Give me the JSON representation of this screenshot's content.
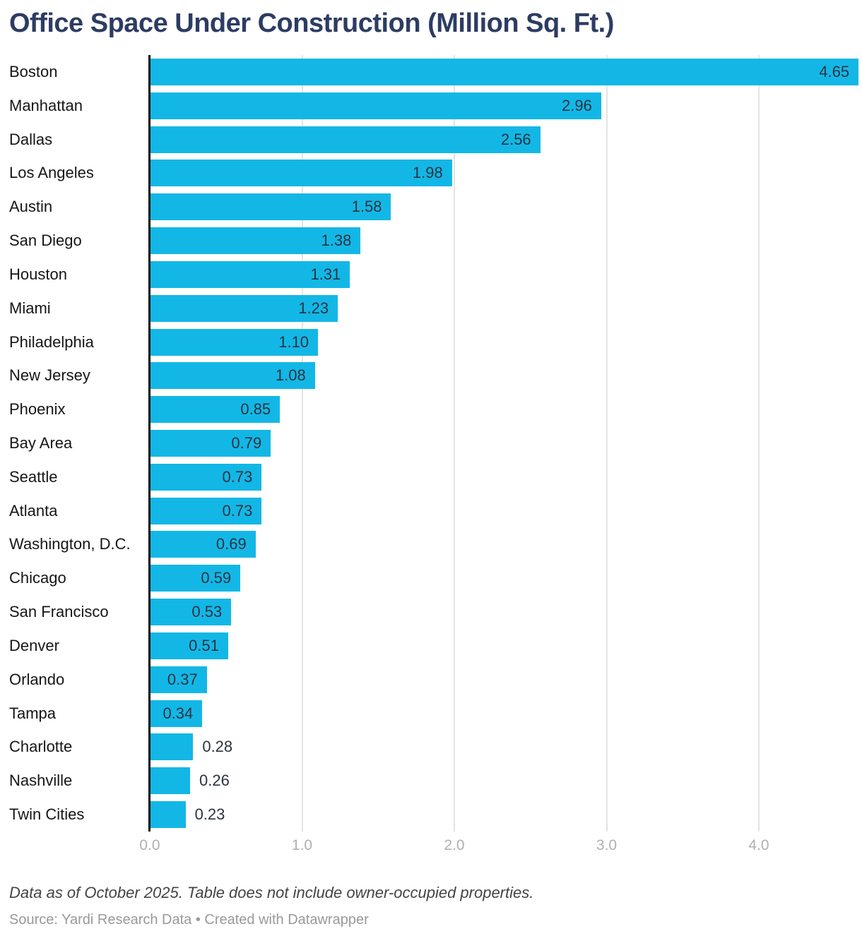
{
  "title": "Office Space Under Construction (Million Sq. Ft.)",
  "chart_data": {
    "type": "bar",
    "orientation": "horizontal",
    "title": "Office Space Under Construction (Million Sq. Ft.)",
    "categories": [
      "Boston",
      "Manhattan",
      "Dallas",
      "Los Angeles",
      "Austin",
      "San Diego",
      "Houston",
      "Miami",
      "Philadelphia",
      "New Jersey",
      "Phoenix",
      "Bay Area",
      "Seattle",
      "Atlanta",
      "Washington, D.C.",
      "Chicago",
      "San Francisco",
      "Denver",
      "Orlando",
      "Tampa",
      "Charlotte",
      "Nashville",
      "Twin Cities"
    ],
    "values": [
      4.65,
      2.96,
      2.56,
      1.98,
      1.58,
      1.38,
      1.31,
      1.23,
      1.1,
      1.08,
      0.85,
      0.79,
      0.73,
      0.73,
      0.69,
      0.59,
      0.53,
      0.51,
      0.37,
      0.34,
      0.28,
      0.26,
      0.23
    ],
    "value_labels": [
      "4.65",
      "2.96",
      "2.56",
      "1.98",
      "1.58",
      "1.38",
      "1.31",
      "1.23",
      "1.10",
      "1.08",
      "0.85",
      "0.79",
      "0.73",
      "0.73",
      "0.69",
      "0.59",
      "0.53",
      "0.51",
      "0.37",
      "0.34",
      "0.28",
      "0.26",
      "0.23"
    ],
    "x_axis": {
      "tick_labels": [
        "0.0",
        "1.0",
        "2.0",
        "3.0",
        "4.0"
      ],
      "tick_values": [
        0,
        1,
        2,
        3,
        4
      ],
      "xlim": [
        0,
        4.65
      ],
      "grid": true
    },
    "legend": "none",
    "value_label_position": "inside-end, outside-end for smallest bars"
  },
  "footer": {
    "note": "Data as of October 2025. Table does not include owner-occupied properties.",
    "source": "Source: Yardi Research Data • Created with Datawrapper"
  },
  "colors": {
    "background": "#ffffff",
    "bar": "#13b7e6",
    "title": "#2d3c63",
    "category_label": "#161616",
    "value_label": "#2b3440",
    "tick_label": "#b0b0b0",
    "gridline": "#e4e4e4",
    "axis_line": "#0a0a0a",
    "note": "#444444",
    "source": "#999999"
  }
}
